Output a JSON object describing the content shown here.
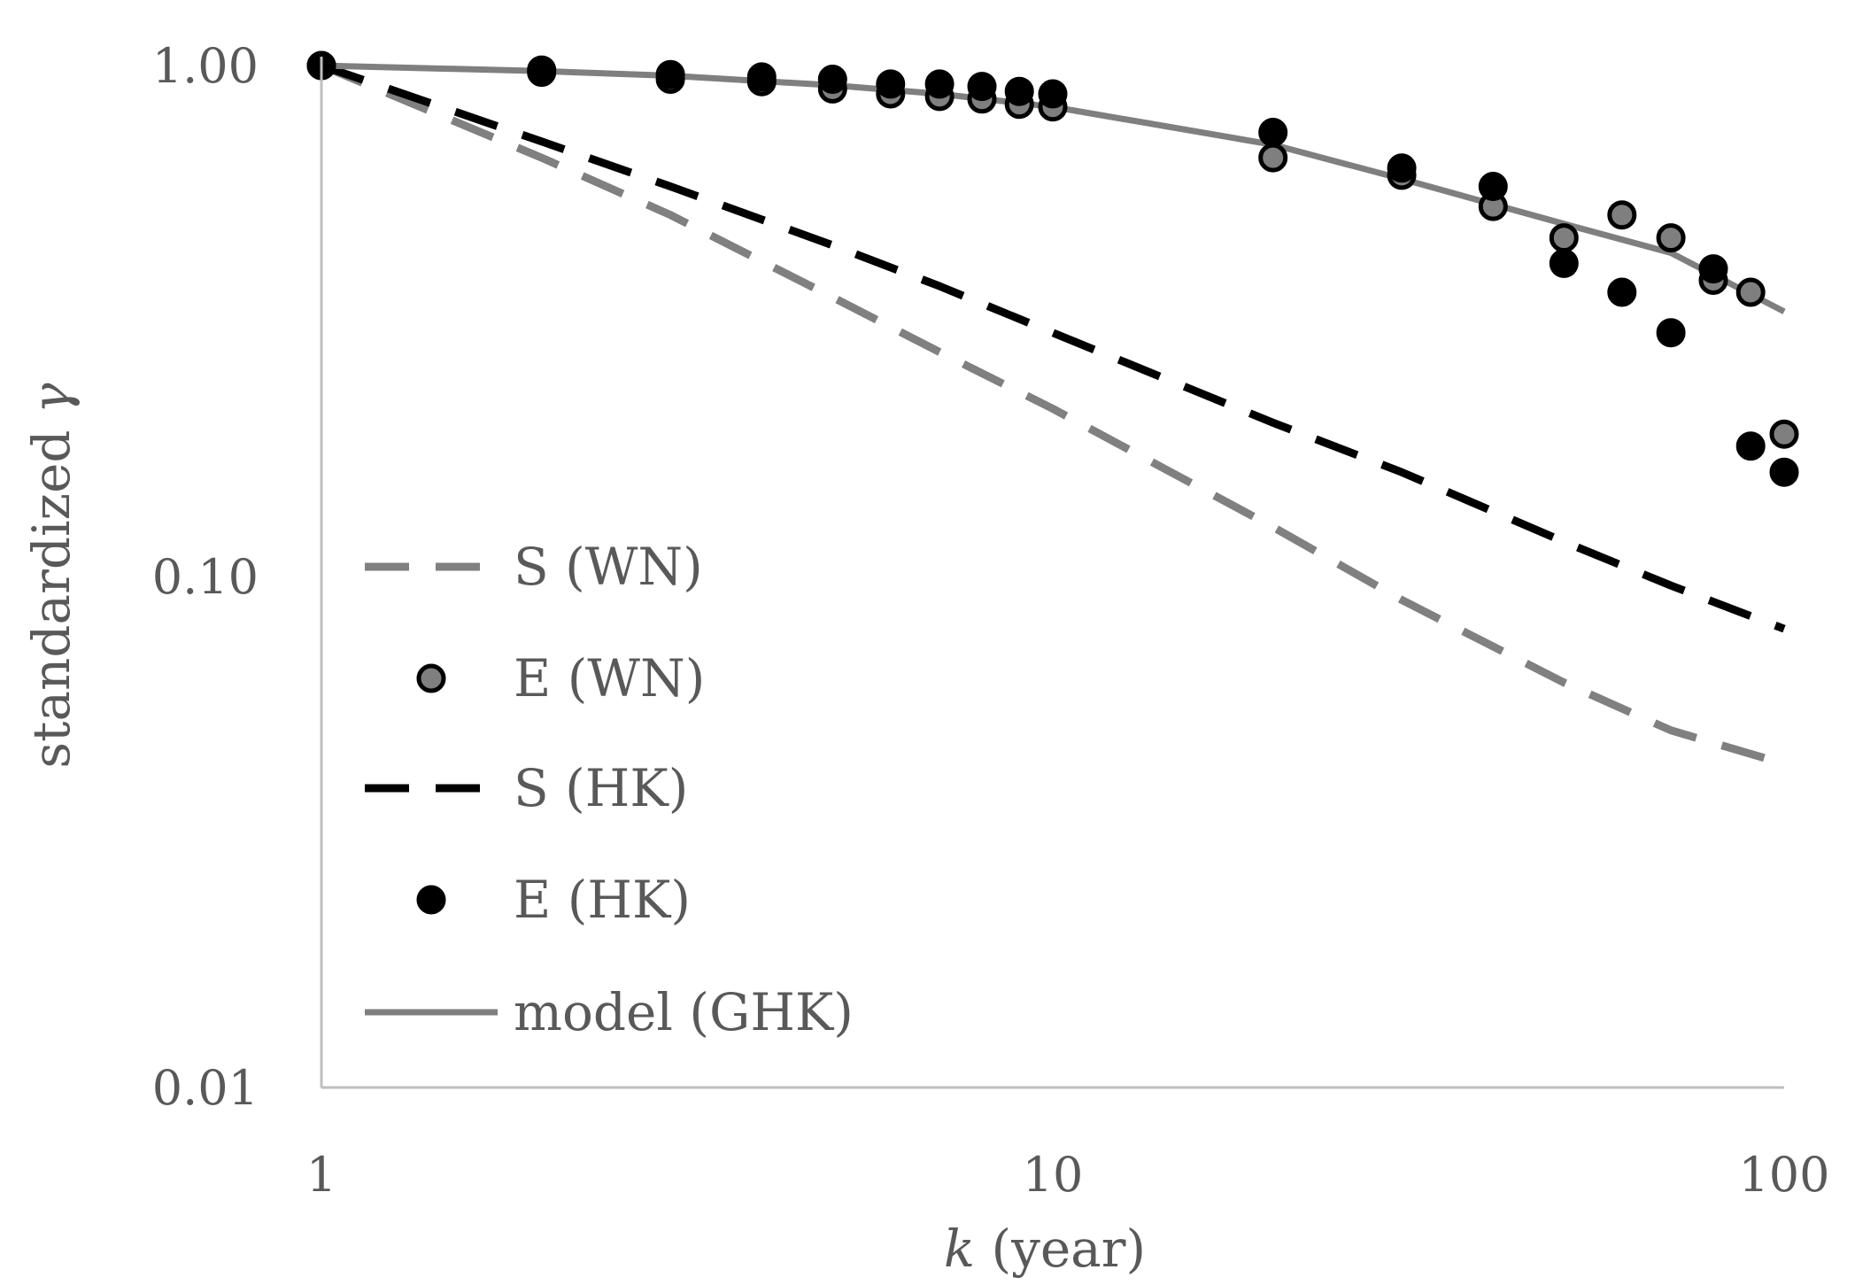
{
  "chart_data": {
    "type": "scatter",
    "xscale": "log",
    "yscale": "log",
    "xlim": [
      1,
      100
    ],
    "ylim": [
      0.01,
      1
    ],
    "xticks": [
      "1",
      "10",
      "100"
    ],
    "yticks": [
      "1.00",
      "0.10",
      "0.01"
    ],
    "xlabel_var": "k",
    "xlabel_rest": " (year)",
    "ylabel_text": "standardized ",
    "ylabel_var": "γ",
    "grid": false,
    "legend_position": "left",
    "series": [
      {
        "name": "S (WN)",
        "kind": "dashed-line",
        "color": "#808080",
        "x": [
          1,
          2,
          3,
          5,
          7,
          10,
          20,
          30,
          50,
          70,
          100
        ],
        "y": [
          1.0,
          0.66,
          0.51,
          0.352,
          0.275,
          0.213,
          0.125,
          0.09,
          0.062,
          0.05,
          0.043
        ]
      },
      {
        "name": "E (WN)",
        "kind": "markers",
        "fill": "#7f7f7f",
        "stroke": "#000000",
        "x": [
          1,
          2,
          3,
          4,
          5,
          6,
          7,
          8,
          9,
          10,
          20,
          30,
          40,
          50,
          60,
          70,
          80,
          90,
          100
        ],
        "y": [
          1.0,
          0.97,
          0.94,
          0.93,
          0.9,
          0.88,
          0.87,
          0.86,
          0.84,
          0.83,
          0.66,
          0.61,
          0.53,
          0.46,
          0.51,
          0.46,
          0.38,
          0.36,
          0.19
        ]
      },
      {
        "name": "S (HK)",
        "kind": "dashed-line",
        "color": "#000000",
        "x": [
          1,
          2,
          3,
          5,
          7,
          10,
          20,
          30,
          50,
          70,
          100
        ],
        "y": [
          1.0,
          0.71,
          0.58,
          0.445,
          0.37,
          0.3,
          0.2,
          0.16,
          0.117,
          0.096,
          0.079
        ]
      },
      {
        "name": "E (HK)",
        "kind": "markers",
        "fill": "#000000",
        "stroke": "#000000",
        "x": [
          1,
          2,
          3,
          4,
          5,
          6,
          7,
          8,
          9,
          10,
          20,
          30,
          40,
          50,
          60,
          70,
          80,
          90,
          100
        ],
        "y": [
          1.0,
          0.98,
          0.96,
          0.95,
          0.94,
          0.92,
          0.92,
          0.91,
          0.89,
          0.88,
          0.74,
          0.63,
          0.58,
          0.41,
          0.36,
          0.3,
          0.4,
          0.18,
          0.16
        ]
      },
      {
        "name": "model (GHK)",
        "kind": "solid-line",
        "color": "#7f7f7f",
        "x": [
          1,
          2,
          3,
          5,
          7,
          10,
          20,
          30,
          50,
          70,
          100
        ],
        "y": [
          1.0,
          0.975,
          0.955,
          0.915,
          0.88,
          0.83,
          0.7,
          0.6,
          0.49,
          0.43,
          0.33
        ]
      }
    ]
  }
}
